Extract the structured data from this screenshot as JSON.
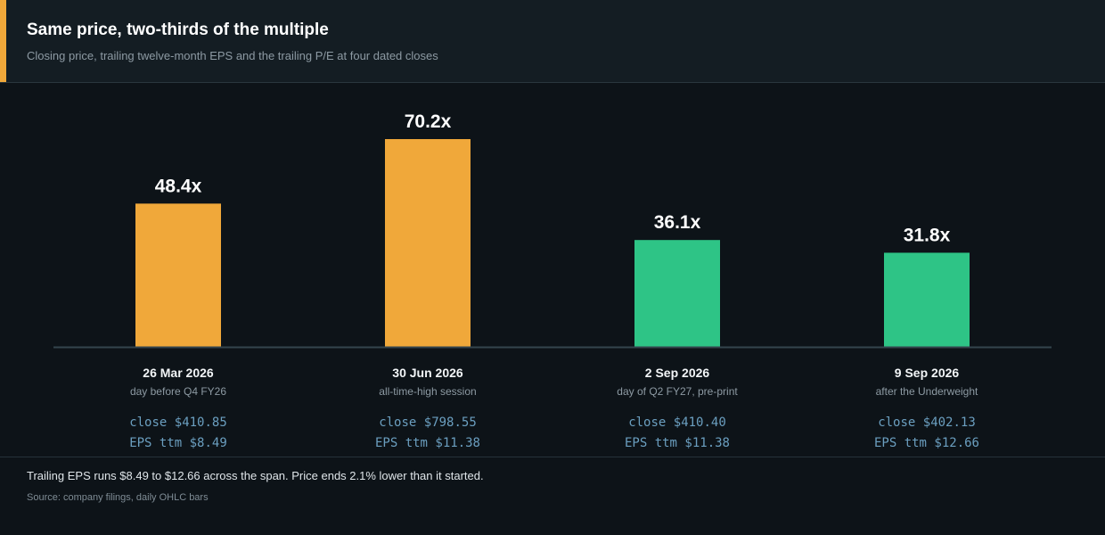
{
  "header": {
    "title": "Same price, two-thirds of the multiple",
    "subtitle": "Closing price, trailing twelve-month EPS and the trailing P/E at four dated closes"
  },
  "chart_data": {
    "type": "bar",
    "categories": [
      "26 Mar 2026",
      "30 Jun 2026",
      "2 Sep 2026",
      "9 Sep 2026"
    ],
    "values": [
      48.4,
      70.2,
      36.1,
      31.8
    ],
    "value_labels": [
      "48.4x",
      "70.2x",
      "36.1x",
      "31.8x"
    ],
    "notes": [
      "day before Q4 FY26",
      "all-time-high session",
      "day of Q2 FY27, pre-print",
      "after the Underweight"
    ],
    "close_lines": [
      "close  $410.85",
      "close  $798.55",
      "close  $410.40",
      "close  $402.13"
    ],
    "eps_lines": [
      "EPS ttm  $8.49",
      "EPS ttm  $11.38",
      "EPS ttm  $11.38",
      "EPS ttm  $12.66"
    ],
    "bar_colors": [
      "#f0a83a",
      "#f0a83a",
      "#2ec486",
      "#2ec486"
    ],
    "ylim": [
      0,
      70.2
    ],
    "grid": false,
    "xlabel": "",
    "ylabel": ""
  },
  "colors": {
    "accent": "#f0a83a",
    "green": "#2ec486",
    "background": "#0d1318",
    "header_background": "#141d23",
    "mono_text": "#6b9fc0"
  },
  "footer": {
    "note": "Trailing EPS runs $8.49 to $12.66 across the span. Price ends 2.1% lower than it started.",
    "source": "Source: company filings, daily OHLC bars"
  }
}
